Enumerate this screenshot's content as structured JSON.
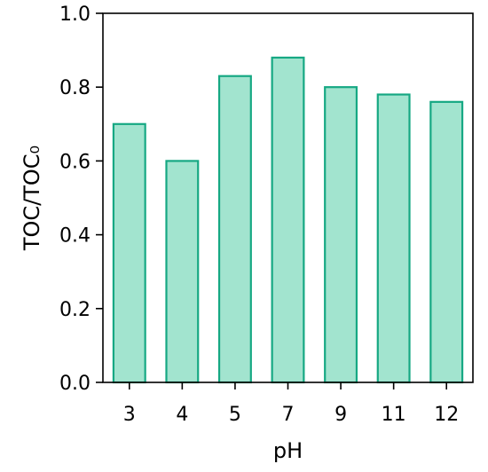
{
  "chart_data": {
    "type": "bar",
    "categories": [
      "3",
      "4",
      "5",
      "7",
      "9",
      "11",
      "12"
    ],
    "values": [
      0.7,
      0.6,
      0.83,
      0.88,
      0.8,
      0.78,
      0.76
    ],
    "title": "",
    "xlabel": "pH",
    "ylabel": "TOC/TOC₀",
    "ylim": [
      0.0,
      1.0
    ],
    "yticks": [
      "0.0",
      "0.2",
      "0.4",
      "0.6",
      "0.8",
      "1.0"
    ],
    "grid": false,
    "colors": {
      "bar_fill": "#a2e4cf",
      "bar_edge": "#16a883",
      "axis": "#000000"
    }
  }
}
